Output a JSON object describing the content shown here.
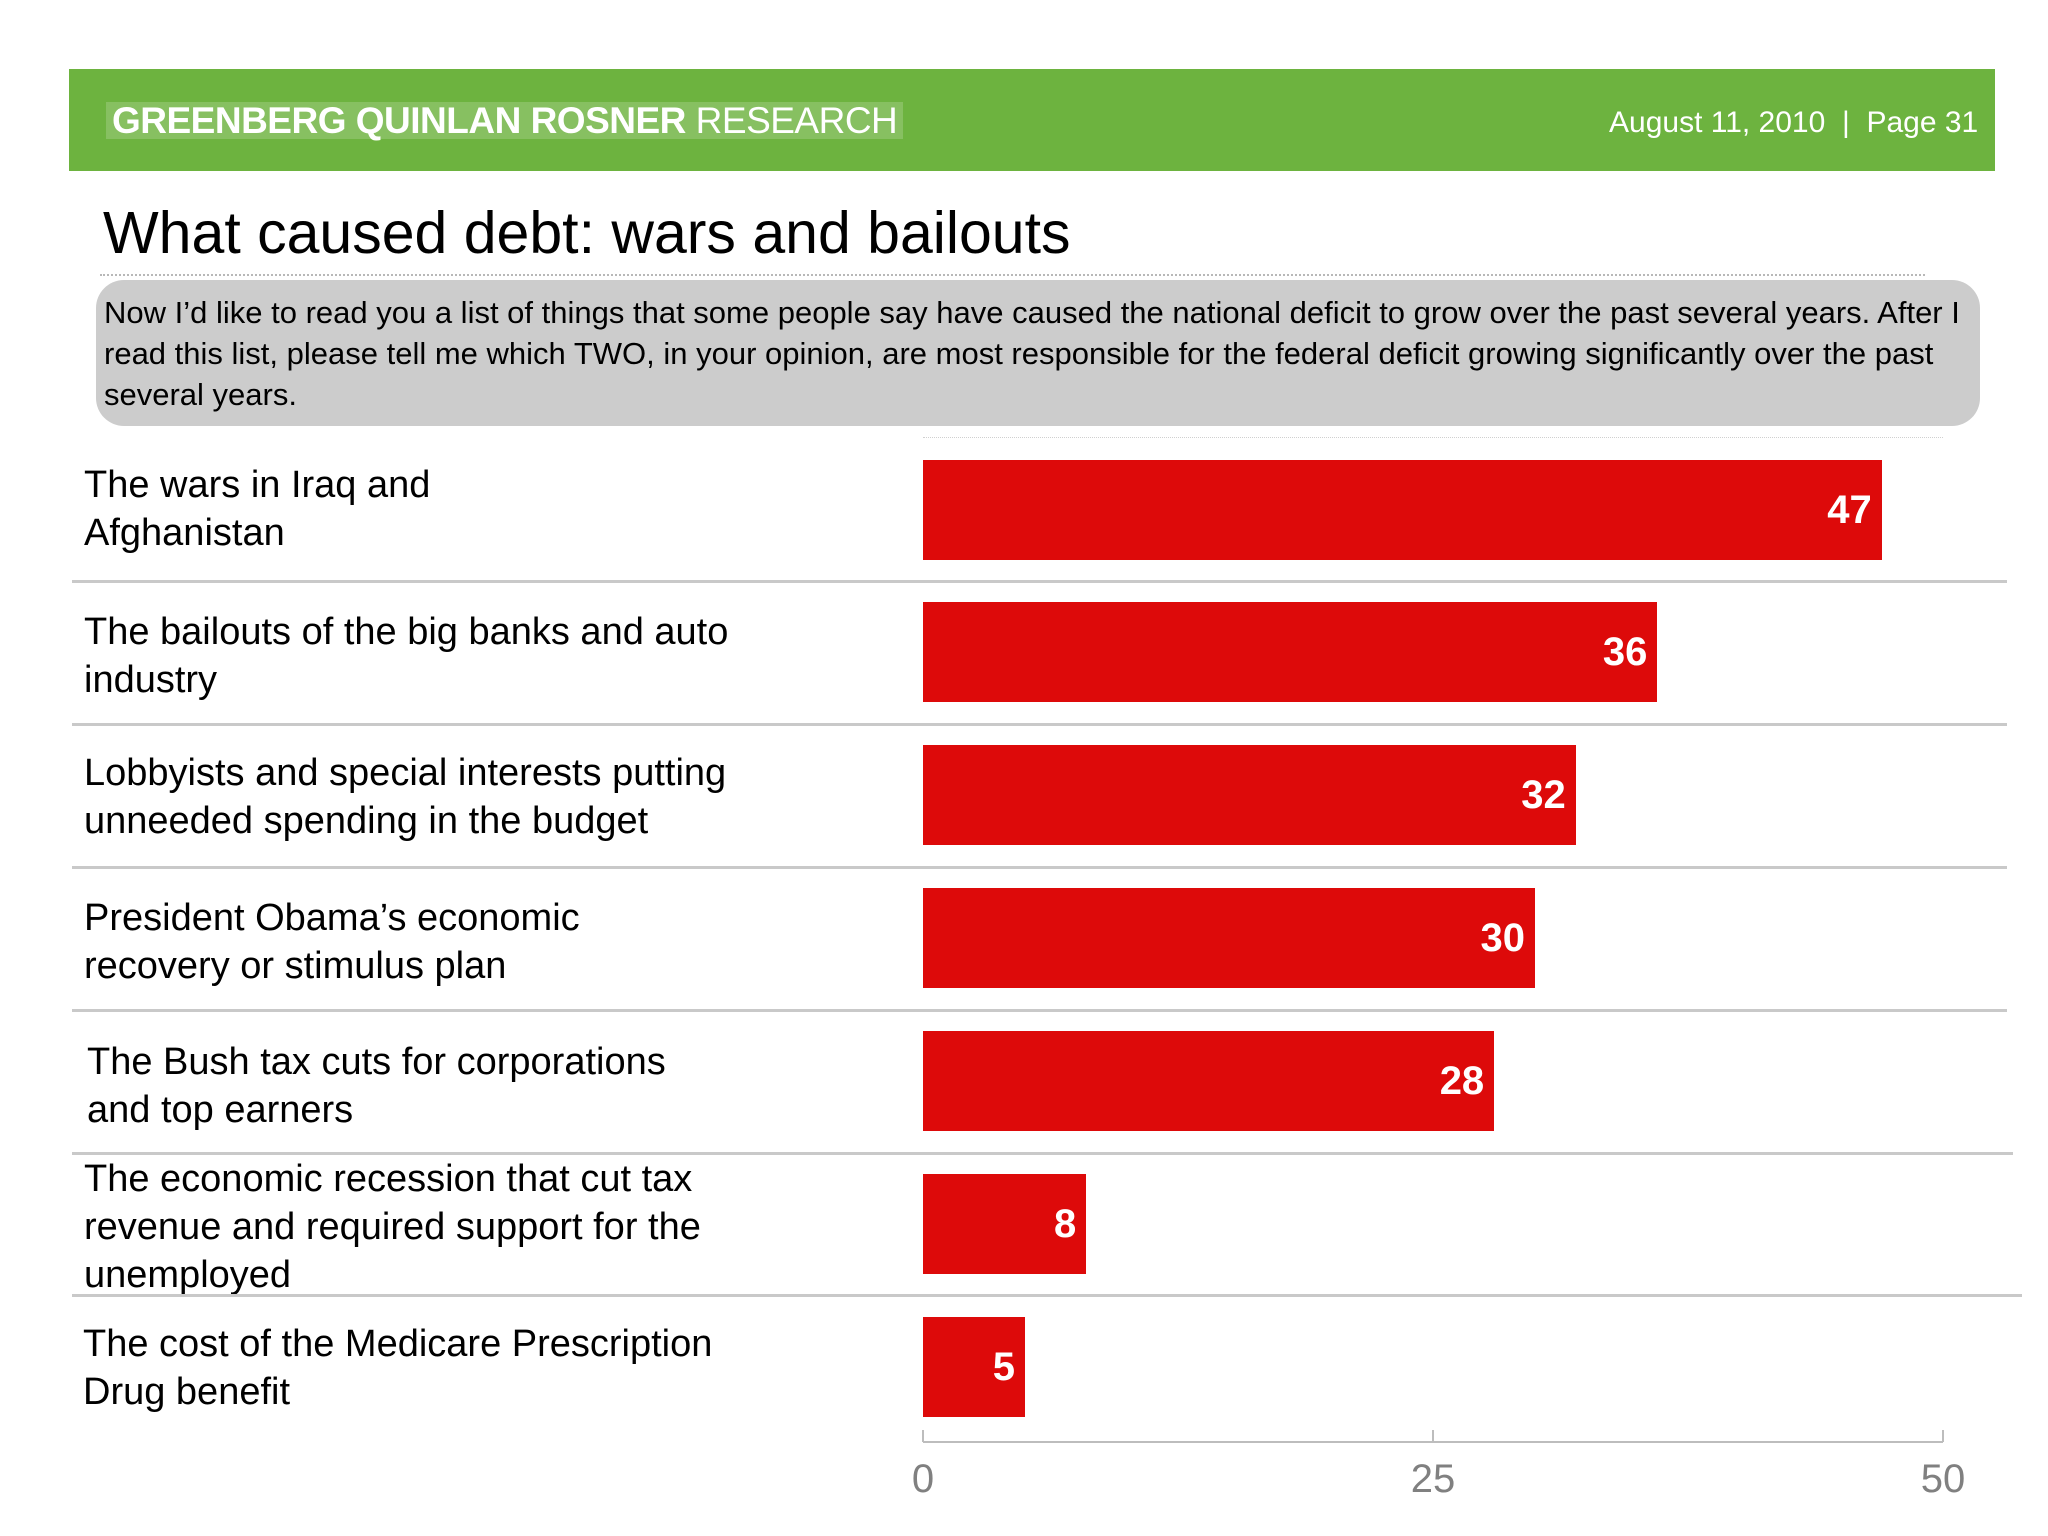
{
  "header": {
    "brand_bold": "GREENBERG QUINLAN ROSNER",
    "brand_light": "RESEARCH",
    "date": "August 11, 2010",
    "separator": "|",
    "page": "Page 31"
  },
  "title": "What caused debt: wars and bailouts",
  "question": "Now I’d like to read you a list of things that some people say have caused the national deficit to grow over the past several years. After I read this list, please tell me which TWO, in your opinion, are most responsible for the federal deficit growing significantly over the past several years.",
  "colors": {
    "bar": "#dd0a0a",
    "header": "#6db33f",
    "question_bg": "#cccccc"
  },
  "chart_data": {
    "type": "bar",
    "orientation": "horizontal",
    "categories": [
      "The wars in Iraq and\n Afghanistan",
      "The bailouts of the big banks and auto\nindustry",
      "Lobbyists and special interests putting\nunneeded spending in the budget",
      "President Obama’s economic\nrecovery or stimulus plan",
      "The Bush tax cuts for corporations\nand top earners",
      "The economic recession that cut tax\nrevenue and required support for the\nunemployed",
      "The cost of the Medicare Prescription\nDrug benefit"
    ],
    "values": [
      47,
      36,
      32,
      30,
      28,
      8,
      5
    ],
    "data_labels": [
      "47",
      "36",
      "32",
      "30",
      "28",
      "8",
      "5"
    ],
    "xlim": [
      0,
      50
    ],
    "xticks": [
      0,
      25,
      50
    ],
    "xtick_labels": [
      "0",
      "25",
      "50"
    ],
    "title": "What caused debt: wars and bailouts",
    "xlabel": "",
    "ylabel": ""
  }
}
